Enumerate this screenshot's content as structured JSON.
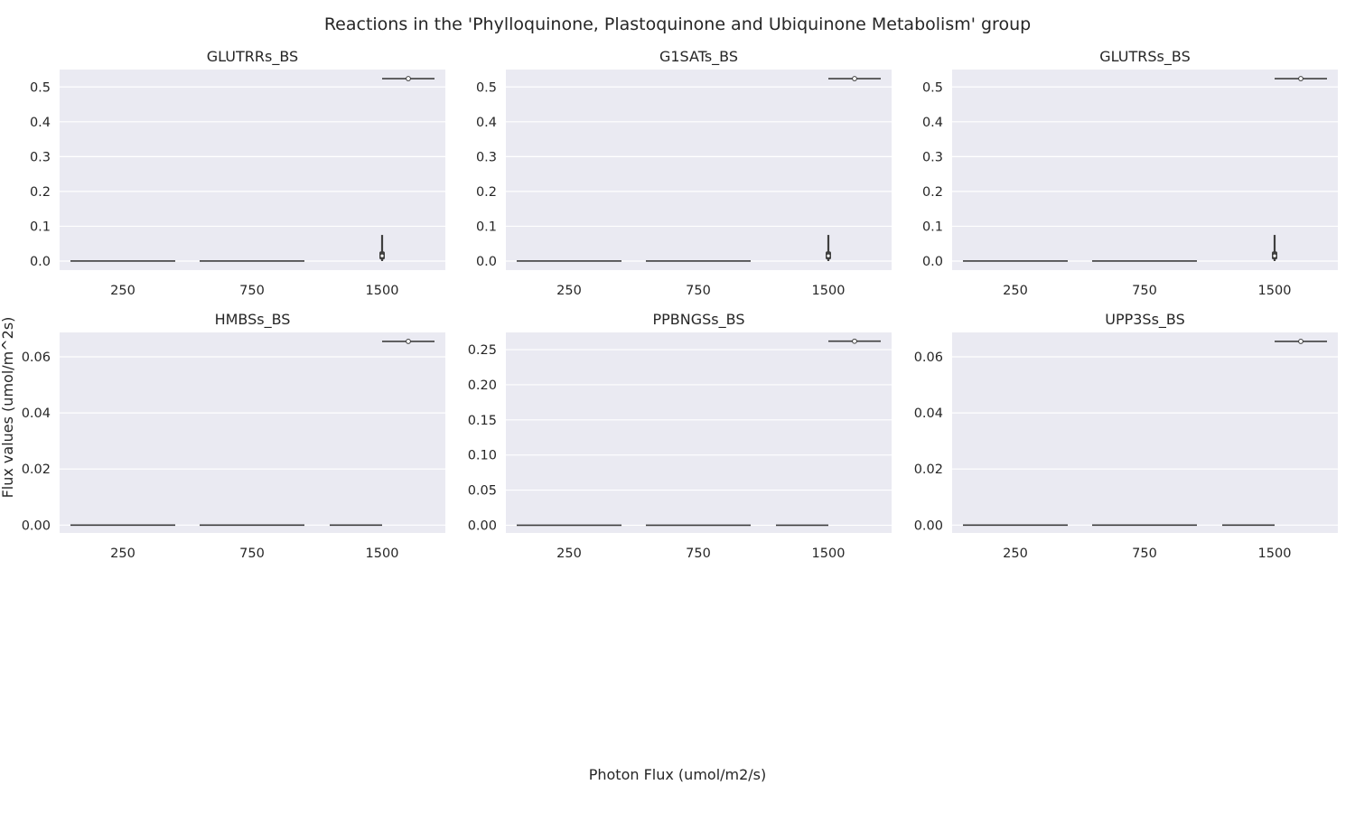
{
  "figure": {
    "suptitle": "Reactions in the 'Phylloquinone, Plastoquinone and Ubiquinone Metabolism' group",
    "xlabel": "Photon Flux (umol/m2/s)",
    "ylabel": "Flux values (umol/m^2s)"
  },
  "colors": {
    "panel_bg": "#eaeaf2",
    "grid": "#ffffff",
    "violin_edge": "#3f3f3f",
    "text": "#262626"
  },
  "chart_data": [
    {
      "type": "violin",
      "title": "GLUTRRs_BS",
      "categories": [
        "250",
        "750",
        "1500"
      ],
      "yticks": [
        0.0,
        0.1,
        0.2,
        0.3,
        0.4,
        0.5
      ],
      "ytick_labels": [
        "0.0",
        "0.1",
        "0.2",
        "0.3",
        "0.4",
        "0.5"
      ],
      "ylim": [
        -0.026,
        0.55
      ],
      "grid": true,
      "series": [
        {
          "category": "250",
          "values": [
            0.0
          ],
          "range": [
            0.0,
            0.0
          ]
        },
        {
          "category": "750",
          "values": [
            0.0
          ],
          "range": [
            0.0,
            0.0
          ]
        },
        {
          "category": "1500",
          "values": [
            0.0,
            0.015,
            0.075
          ],
          "range": [
            0.0,
            0.075
          ]
        },
        {
          "category": "1500",
          "values": [
            0.524
          ],
          "range": [
            0.524,
            0.524
          ]
        }
      ]
    },
    {
      "type": "violin",
      "title": "G1SATs_BS",
      "categories": [
        "250",
        "750",
        "1500"
      ],
      "yticks": [
        0.0,
        0.1,
        0.2,
        0.3,
        0.4,
        0.5
      ],
      "ytick_labels": [
        "0.0",
        "0.1",
        "0.2",
        "0.3",
        "0.4",
        "0.5"
      ],
      "ylim": [
        -0.026,
        0.55
      ],
      "grid": true,
      "series": [
        {
          "category": "250",
          "values": [
            0.0
          ],
          "range": [
            0.0,
            0.0
          ]
        },
        {
          "category": "750",
          "values": [
            0.0
          ],
          "range": [
            0.0,
            0.0
          ]
        },
        {
          "category": "1500",
          "values": [
            0.0,
            0.015,
            0.075
          ],
          "range": [
            0.0,
            0.075
          ]
        },
        {
          "category": "1500",
          "values": [
            0.524
          ],
          "range": [
            0.524,
            0.524
          ]
        }
      ]
    },
    {
      "type": "violin",
      "title": "GLUTRSs_BS",
      "categories": [
        "250",
        "750",
        "1500"
      ],
      "yticks": [
        0.0,
        0.1,
        0.2,
        0.3,
        0.4,
        0.5
      ],
      "ytick_labels": [
        "0.0",
        "0.1",
        "0.2",
        "0.3",
        "0.4",
        "0.5"
      ],
      "ylim": [
        -0.026,
        0.55
      ],
      "grid": true,
      "series": [
        {
          "category": "250",
          "values": [
            0.0
          ],
          "range": [
            0.0,
            0.0
          ]
        },
        {
          "category": "750",
          "values": [
            0.0
          ],
          "range": [
            0.0,
            0.0
          ]
        },
        {
          "category": "1500",
          "values": [
            0.0,
            0.015,
            0.075
          ],
          "range": [
            0.0,
            0.075
          ]
        },
        {
          "category": "1500",
          "values": [
            0.524
          ],
          "range": [
            0.524,
            0.524
          ]
        }
      ]
    },
    {
      "type": "violin",
      "title": "HMBSs_BS",
      "categories": [
        "250",
        "750",
        "1500"
      ],
      "yticks": [
        0.0,
        0.02,
        0.04,
        0.06
      ],
      "ytick_labels": [
        "0.00",
        "0.02",
        "0.04",
        "0.06"
      ],
      "ylim": [
        -0.0028,
        0.0687
      ],
      "grid": true,
      "series": [
        {
          "category": "250",
          "values": [
            0.0
          ],
          "range": [
            0.0,
            0.0
          ]
        },
        {
          "category": "750",
          "values": [
            0.0
          ],
          "range": [
            0.0,
            0.0
          ]
        },
        {
          "category": "1500",
          "values": [
            0.0
          ],
          "range": [
            0.0,
            0.0
          ]
        },
        {
          "category": "1500",
          "values": [
            0.0655
          ],
          "range": [
            0.0655,
            0.0655
          ]
        }
      ]
    },
    {
      "type": "violin",
      "title": "PPBNGSs_BS",
      "categories": [
        "250",
        "750",
        "1500"
      ],
      "yticks": [
        0.0,
        0.05,
        0.1,
        0.15,
        0.2,
        0.25
      ],
      "ytick_labels": [
        "0.00",
        "0.05",
        "0.10",
        "0.15",
        "0.20",
        "0.25"
      ],
      "ylim": [
        -0.011,
        0.2745
      ],
      "grid": true,
      "series": [
        {
          "category": "250",
          "values": [
            0.0
          ],
          "range": [
            0.0,
            0.0
          ]
        },
        {
          "category": "750",
          "values": [
            0.0
          ],
          "range": [
            0.0,
            0.0
          ]
        },
        {
          "category": "1500",
          "values": [
            0.0
          ],
          "range": [
            0.0,
            0.0
          ]
        },
        {
          "category": "1500",
          "values": [
            0.262
          ],
          "range": [
            0.262,
            0.262
          ]
        }
      ]
    },
    {
      "type": "violin",
      "title": "UPP3Ss_BS",
      "categories": [
        "250",
        "750",
        "1500"
      ],
      "yticks": [
        0.0,
        0.02,
        0.04,
        0.06
      ],
      "ytick_labels": [
        "0.00",
        "0.02",
        "0.04",
        "0.06"
      ],
      "ylim": [
        -0.0028,
        0.0687
      ],
      "grid": true,
      "series": [
        {
          "category": "250",
          "values": [
            0.0
          ],
          "range": [
            0.0,
            0.0
          ]
        },
        {
          "category": "750",
          "values": [
            0.0
          ],
          "range": [
            0.0,
            0.0
          ]
        },
        {
          "category": "1500",
          "values": [
            0.0
          ],
          "range": [
            0.0,
            0.0
          ]
        },
        {
          "category": "1500",
          "values": [
            0.0655
          ],
          "range": [
            0.0655,
            0.0655
          ]
        }
      ]
    }
  ]
}
